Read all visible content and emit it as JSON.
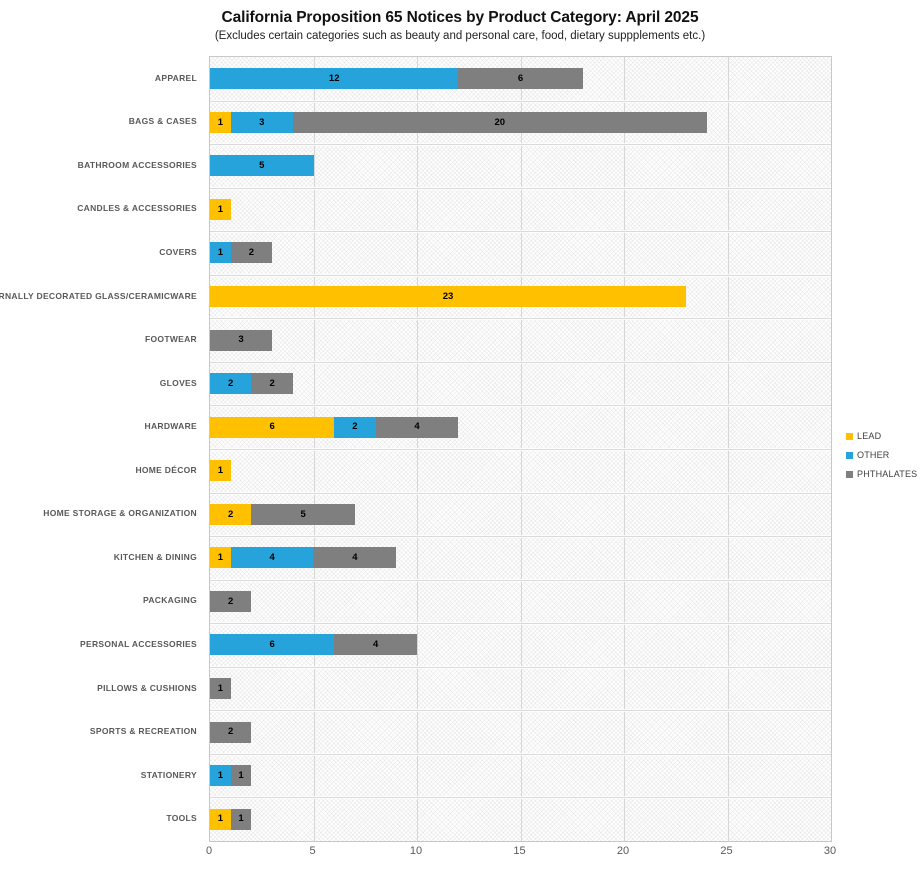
{
  "chart_data": {
    "type": "bar",
    "orientation": "horizontal",
    "stacked": true,
    "title": "California Proposition 65 Notices by Product Category: April 2025",
    "subtitle": "(Excludes certain categories such as beauty and personal care, food, dietary suppplements etc.)",
    "categories": [
      "APPAREL",
      "BAGS & CASES",
      "BATHROOM ACCESSORIES",
      "CANDLES & ACCESSORIES",
      "COVERS",
      "EXTERNALLY DECORATED GLASS/CERAMICWARE",
      "FOOTWEAR",
      "GLOVES",
      "HARDWARE",
      "HOME DÉCOR",
      "HOME STORAGE & ORGANIZATION",
      "KITCHEN & DINING",
      "PACKAGING",
      "PERSONAL ACCESSORIES",
      "PILLOWS & CUSHIONS",
      "SPORTS & RECREATION",
      "STATIONERY",
      "TOOLS"
    ],
    "series": [
      {
        "name": "LEAD",
        "color": "#FFC000",
        "values": [
          0,
          1,
          0,
          1,
          0,
          23,
          0,
          0,
          6,
          1,
          2,
          1,
          0,
          0,
          0,
          0,
          0,
          1
        ]
      },
      {
        "name": "OTHER",
        "color": "#27A3DC",
        "values": [
          12,
          3,
          5,
          0,
          1,
          0,
          0,
          2,
          2,
          0,
          0,
          4,
          0,
          6,
          0,
          0,
          1,
          0
        ]
      },
      {
        "name": "PHTHALATES",
        "color": "#7F7F7F",
        "values": [
          6,
          20,
          0,
          0,
          2,
          0,
          3,
          2,
          4,
          0,
          5,
          4,
          2,
          4,
          1,
          2,
          1,
          1
        ]
      }
    ],
    "x_ticks": [
      0,
      5,
      10,
      15,
      20,
      25,
      30
    ],
    "xlim": [
      0,
      30
    ],
    "grid": true,
    "legend_position": "right",
    "plot_background_pattern": "light-crosshatch",
    "grid_color": "#D9D9D9",
    "axis_text_color": "#595959"
  }
}
